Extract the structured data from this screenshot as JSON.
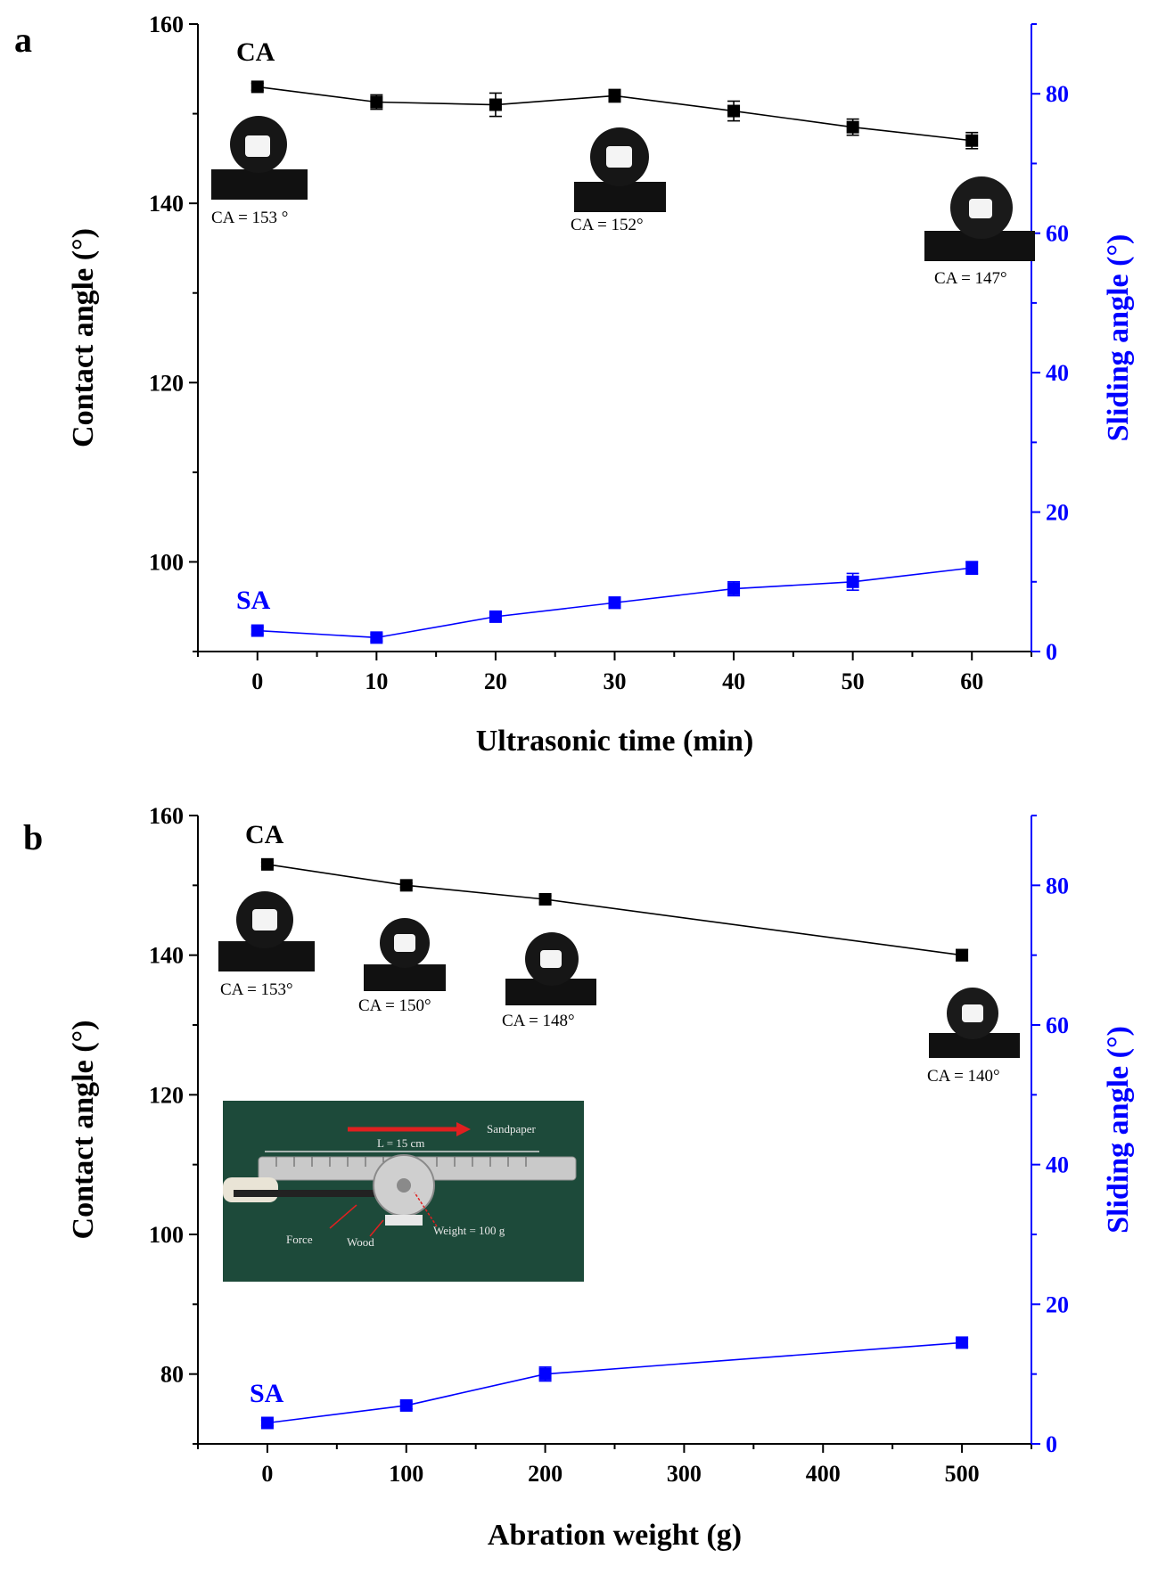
{
  "colors": {
    "ca": "#000000",
    "sa": "#0000ff",
    "axis": "#000000",
    "photo_bg": "#1d4a3a",
    "arrow": "#e02020"
  },
  "chart_data": [
    {
      "panel": "a",
      "type": "line",
      "xlabel": "Ultrasonic time (min)",
      "ylabel": "Contact angle (°)",
      "y2label": "Sliding angle (°)",
      "xlim": [
        -5,
        65
      ],
      "x_ticks": [
        0,
        10,
        20,
        30,
        40,
        50,
        60
      ],
      "ylim": [
        90,
        160
      ],
      "y_ticks": [
        100,
        120,
        140,
        160
      ],
      "y2lim": [
        0,
        90
      ],
      "y2_ticks": [
        0,
        20,
        40,
        60,
        80
      ],
      "x": [
        0,
        10,
        20,
        30,
        40,
        50,
        60
      ],
      "series": [
        {
          "name": "CA",
          "axis": "left",
          "values": [
            153,
            151.3,
            151,
            152,
            150.3,
            148.5,
            147
          ],
          "errors": [
            0.4,
            0.8,
            1.3,
            0.7,
            1.1,
            0.9,
            0.9
          ]
        },
        {
          "name": "SA",
          "axis": "right",
          "values": [
            3,
            2,
            5,
            7,
            9,
            10,
            12
          ],
          "errors": [
            0.5,
            0.5,
            0.6,
            0.8,
            1.0,
            1.2,
            0.9
          ]
        }
      ],
      "insets": [
        {
          "caption": "CA = 153 °"
        },
        {
          "caption": "CA = 152°"
        },
        {
          "caption": "CA = 147°"
        }
      ]
    },
    {
      "panel": "b",
      "type": "line",
      "xlabel": "Abration weight (g)",
      "ylabel": "Contact angle (°)",
      "y2label": "Sliding angle (°)",
      "xlim": [
        -50,
        550
      ],
      "x_ticks": [
        0,
        100,
        200,
        300,
        400,
        500
      ],
      "ylim": [
        70,
        160
      ],
      "y_ticks": [
        80,
        100,
        120,
        140,
        160
      ],
      "y2lim": [
        0,
        90
      ],
      "y2_ticks": [
        0,
        20,
        40,
        60,
        80
      ],
      "x": [
        0,
        100,
        200,
        500
      ],
      "series": [
        {
          "name": "CA",
          "axis": "left",
          "values": [
            153,
            150,
            148,
            140
          ],
          "errors": [
            0.3,
            0.3,
            0.5,
            0.8
          ]
        },
        {
          "name": "SA",
          "axis": "right",
          "values": [
            3,
            5.5,
            10,
            14.5
          ],
          "errors": [
            0.4,
            0.5,
            1.0,
            0.6
          ]
        }
      ],
      "insets": [
        {
          "caption": "CA = 153°"
        },
        {
          "caption": "CA = 150°"
        },
        {
          "caption": "CA = 148°"
        },
        {
          "caption": "CA = 140°"
        }
      ],
      "photo": {
        "labels": [
          "Sandpaper",
          "L = 15 cm",
          "Force",
          "Wood",
          "Weight = 100 g"
        ]
      }
    }
  ]
}
